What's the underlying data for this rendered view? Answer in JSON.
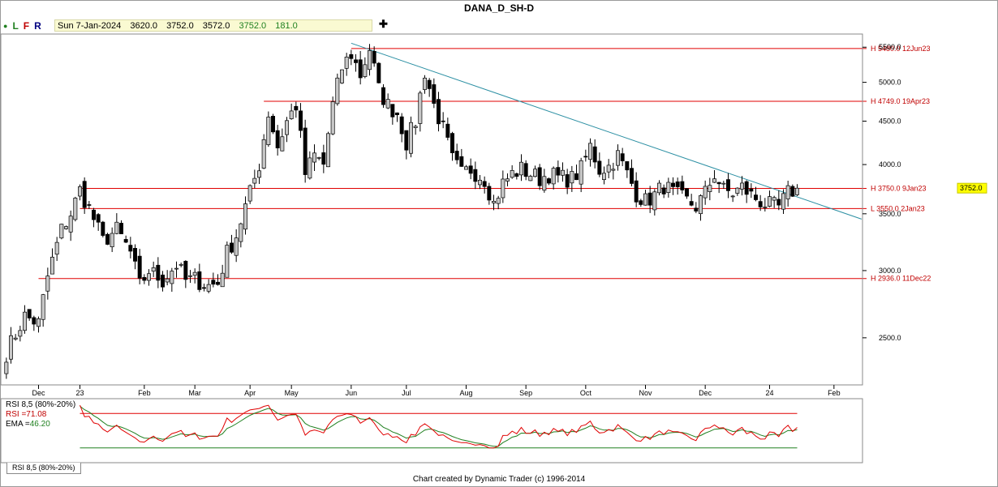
{
  "title": "DANA_D_SH-D",
  "toolbar": {
    "dot": "●",
    "l": "L",
    "f": "F",
    "r": "R",
    "crosshair": "✚"
  },
  "ohlc": {
    "date": "Sun 7-Jan-2024",
    "open": "3620.0",
    "high": "3752.0",
    "low": "3572.0",
    "close": "3752.0",
    "change": "181.0"
  },
  "colors": {
    "level_line": "#e00000",
    "trendline": "#2b8fa3",
    "rsi": "#e00000",
    "ema": "#208020",
    "price_box": "#ffff00"
  },
  "chart_data": [
    {
      "type": "candlestick",
      "scale": "log",
      "ylim": [
        2200,
        5700
      ],
      "yticks": [
        "5500.0",
        "5000.0",
        "4500.0",
        "4000.0",
        "3500.0",
        "3000.0",
        "2500.0"
      ],
      "ytick_values": [
        5500,
        5000,
        4500,
        4000,
        3500,
        3000,
        2500
      ],
      "xticks": [
        "Dec",
        "23",
        "Feb",
        "Mar",
        "Apr",
        "May",
        "Jun",
        "Jul",
        "Aug",
        "Sep",
        "Oct",
        "Nov",
        "Dec",
        "24",
        "Feb"
      ],
      "xtick_bar": [
        7,
        16,
        30,
        41,
        53,
        62,
        75,
        87,
        100,
        113,
        126,
        139,
        152,
        166,
        180
      ],
      "bar_count": 186,
      "last_price_label": "3752.0",
      "last_price": 3752,
      "levels": [
        {
          "label": "H 5480.0 12Jun23",
          "value": 5480,
          "start_bar": 75
        },
        {
          "label": "H 4749.0 19Apr23",
          "value": 4749,
          "start_bar": 56
        },
        {
          "label": "H 3750.0 9Jan23",
          "value": 3750,
          "start_bar": 16
        },
        {
          "label": "L 3550.0 2Jan23",
          "value": 3550,
          "start_bar": 16
        },
        {
          "label": "H 2936.0 11Dec22",
          "value": 2936,
          "start_bar": 7
        }
      ],
      "trendline": {
        "from": {
          "bar": 75,
          "value": 5560
        },
        "to": {
          "bar": 186,
          "value": 3450
        }
      },
      "anchors": [
        [
          0,
          2400
        ],
        [
          4,
          2650
        ],
        [
          7,
          2600
        ],
        [
          9,
          2950
        ],
        [
          12,
          3350
        ],
        [
          14,
          3500
        ],
        [
          16,
          3730
        ],
        [
          18,
          3550
        ],
        [
          21,
          3250
        ],
        [
          24,
          3350
        ],
        [
          27,
          3150
        ],
        [
          29,
          2880
        ],
        [
          31,
          3000
        ],
        [
          34,
          2920
        ],
        [
          37,
          3050
        ],
        [
          39,
          2920
        ],
        [
          41,
          2930
        ],
        [
          44,
          2880
        ],
        [
          46,
          2900
        ],
        [
          48,
          3150
        ],
        [
          50,
          3300
        ],
        [
          53,
          3700
        ],
        [
          55,
          4000
        ],
        [
          57,
          4600
        ],
        [
          59,
          4200
        ],
        [
          61,
          4500
        ],
        [
          63,
          4700
        ],
        [
          65,
          3900
        ],
        [
          67,
          4100
        ],
        [
          69,
          4000
        ],
        [
          71,
          4700
        ],
        [
          73,
          5200
        ],
        [
          75,
          5400
        ],
        [
          77,
          5100
        ],
        [
          79,
          5480
        ],
        [
          81,
          4900
        ],
        [
          83,
          4700
        ],
        [
          85,
          4600
        ],
        [
          87,
          4250
        ],
        [
          89,
          4500
        ],
        [
          91,
          5150
        ],
        [
          93,
          4700
        ],
        [
          95,
          4400
        ],
        [
          97,
          4050
        ],
        [
          99,
          3900
        ],
        [
          101,
          3950
        ],
        [
          104,
          3850
        ],
        [
          106,
          3600
        ],
        [
          108,
          3800
        ],
        [
          110,
          3900
        ],
        [
          112,
          3950
        ],
        [
          114,
          3900
        ],
        [
          116,
          3850
        ],
        [
          118,
          3900
        ],
        [
          120,
          3860
        ],
        [
          123,
          3850
        ],
        [
          125,
          3950
        ],
        [
          127,
          4200
        ],
        [
          129,
          3950
        ],
        [
          131,
          3980
        ],
        [
          133,
          4100
        ],
        [
          135,
          3900
        ],
        [
          137,
          3700
        ],
        [
          139,
          3620
        ],
        [
          141,
          3680
        ],
        [
          143,
          3780
        ],
        [
          145,
          3700
        ],
        [
          147,
          3650
        ],
        [
          150,
          3570
        ],
        [
          152,
          3700
        ],
        [
          154,
          3900
        ],
        [
          156,
          3730
        ],
        [
          158,
          3700
        ],
        [
          160,
          3760
        ],
        [
          162,
          3680
        ],
        [
          164,
          3620
        ],
        [
          166,
          3580
        ],
        [
          168,
          3560
        ],
        [
          170,
          3700
        ],
        [
          172,
          3752
        ]
      ]
    },
    {
      "type": "line",
      "legend": {
        "title": "RSI 8,5 (80%-20%)",
        "rsi_label": "RSI =",
        "rsi_value": "71.08",
        "ema_label": "EMA =",
        "ema_value": "46.20"
      },
      "ylim": [
        0,
        100
      ],
      "bands": [
        80,
        20
      ],
      "series": [
        {
          "name": "RSI",
          "values_from": "price"
        },
        {
          "name": "EMA",
          "period": 5
        }
      ],
      "tab_label": "RSI 8,5 (80%-20%)"
    }
  ],
  "credit": "Chart created by Dynamic Trader  (c) 1996-2014"
}
